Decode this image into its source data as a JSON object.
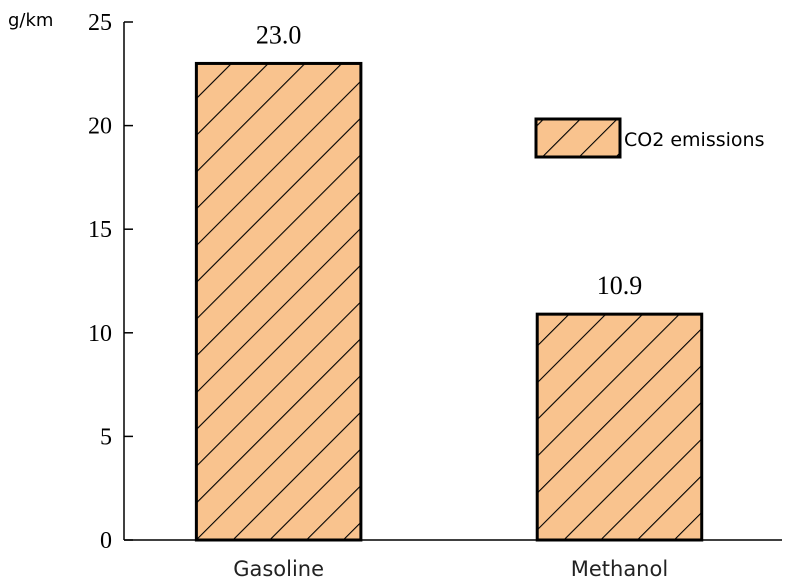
{
  "chart_data": {
    "type": "bar",
    "categories": [
      "Gasoline",
      "Methanol"
    ],
    "series": [
      {
        "name": "CO2 emissions",
        "values": [
          23.0,
          10.9
        ]
      }
    ],
    "data_labels": [
      "23.0",
      "10.9"
    ],
    "ylabel": "g/km",
    "ylim": [
      0,
      25
    ],
    "yticks": [
      0,
      5,
      10,
      15,
      20,
      25
    ],
    "grid": false,
    "legend_position": "top-right",
    "colors": {
      "bar_fill": "#f9c38e",
      "bar_stroke": "#000000",
      "hatch": "#000000"
    }
  }
}
